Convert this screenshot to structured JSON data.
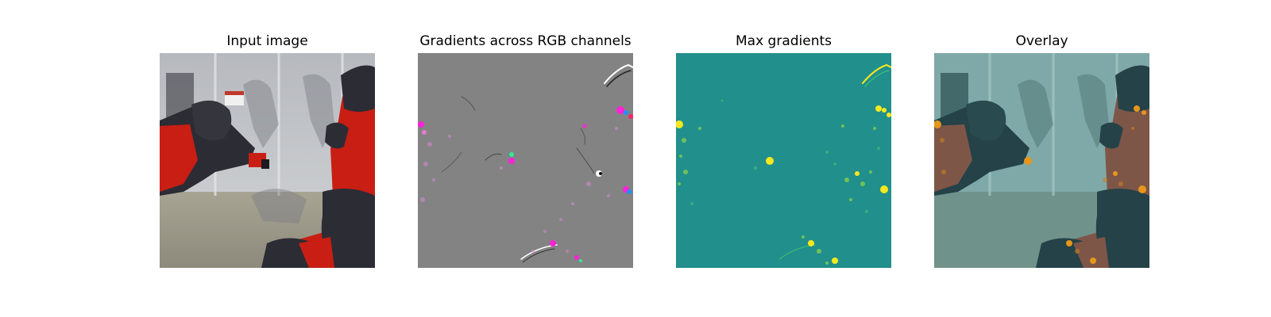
{
  "figure": {
    "panels": [
      {
        "title": "Input image"
      },
      {
        "title": "Gradients across RGB channels"
      },
      {
        "title": "Max gradients"
      },
      {
        "title": "Overlay"
      }
    ]
  },
  "colors": {
    "background": "#ffffff",
    "gradient_gray": "#838383",
    "viridis_teal": "#218f8c",
    "viridis_yellow": "#f7e81f",
    "robot_red": "#c81e14",
    "robot_dark": "#2c2c34",
    "magenta_highlight": "#ff22d6",
    "overlay_orange": "#e6961c"
  }
}
